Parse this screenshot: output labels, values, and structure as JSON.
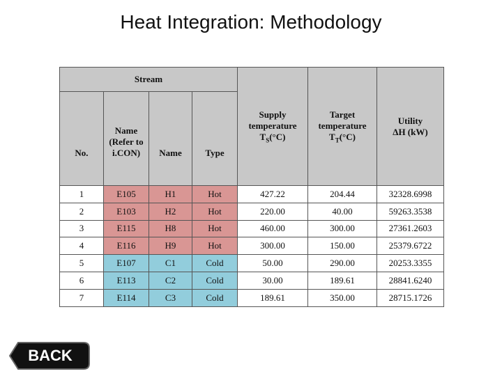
{
  "header": {
    "title": "Heat Integration: Methodology"
  },
  "table": {
    "group_header": "Stream",
    "columns": [
      {
        "lines": [
          "No."
        ]
      },
      {
        "lines": [
          "Name",
          "(Refer to",
          "i.CON)"
        ]
      },
      {
        "lines": [
          "Name"
        ]
      },
      {
        "lines": [
          "Type"
        ]
      },
      {
        "lines": [
          "Supply",
          "temperature"
        ],
        "symbol": "T",
        "sub": "S",
        "unit": "(°C)"
      },
      {
        "lines": [
          "Target",
          "temperature"
        ],
        "symbol": "T",
        "sub": "T",
        "unit": "(°C)"
      },
      {
        "lines": [
          "Utility",
          "ΔH (kW)"
        ]
      }
    ],
    "rows": [
      {
        "color": "#d99694",
        "cells": [
          "1",
          "E105",
          "H1",
          "Hot",
          "427.22",
          "204.44",
          "32328.6998"
        ]
      },
      {
        "color": "#d99694",
        "cells": [
          "2",
          "E103",
          "H2",
          "Hot",
          "220.00",
          "40.00",
          "59263.3538"
        ]
      },
      {
        "color": "#d99694",
        "cells": [
          "3",
          "E115",
          "H8",
          "Hot",
          "460.00",
          "300.00",
          "27361.2603"
        ]
      },
      {
        "color": "#d99694",
        "cells": [
          "4",
          "E116",
          "H9",
          "Hot",
          "300.00",
          "150.00",
          "25379.6722"
        ]
      },
      {
        "color": "#92cddc",
        "cells": [
          "5",
          "E107",
          "C1",
          "Cold",
          "50.00",
          "290.00",
          "20253.3355"
        ]
      },
      {
        "color": "#92cddc",
        "cells": [
          "6",
          "E113",
          "C2",
          "Cold",
          "30.00",
          "189.61",
          "28841.6240"
        ]
      },
      {
        "color": "#92cddc",
        "cells": [
          "7",
          "E114",
          "C3",
          "Cold",
          "189.61",
          "350.00",
          "28715.1726"
        ]
      }
    ]
  },
  "button": {
    "label": "BACK"
  }
}
